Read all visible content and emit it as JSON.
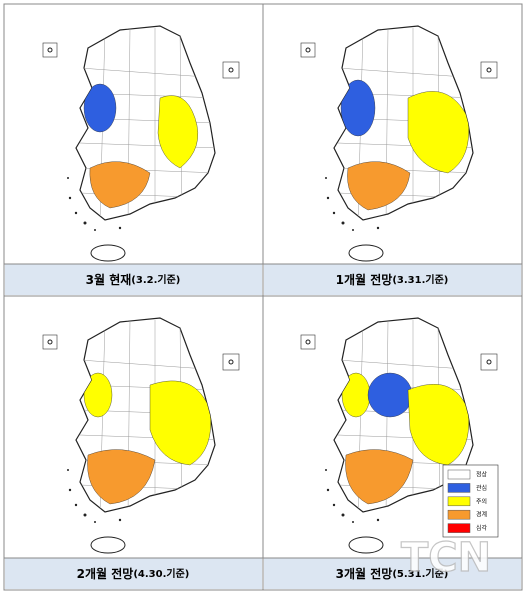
{
  "panels": [
    {
      "title": "3월 현재",
      "date": "(3.2.기준)"
    },
    {
      "title": "1개월 전망",
      "date": "(3.31.기준)"
    },
    {
      "title": "2개월 전망",
      "date": "(4.30.기준)"
    },
    {
      "title": "3개월 전망",
      "date": "(5.31.기준)"
    }
  ],
  "legend": [
    {
      "label": "정상",
      "color": "#ffffff"
    },
    {
      "label": "관심",
      "color": "#2e5fe0"
    },
    {
      "label": "주의",
      "color": "#ffff00"
    },
    {
      "label": "경계",
      "color": "#f79a2e"
    },
    {
      "label": "심각",
      "color": "#ff0000"
    }
  ],
  "watermark": "TCN"
}
